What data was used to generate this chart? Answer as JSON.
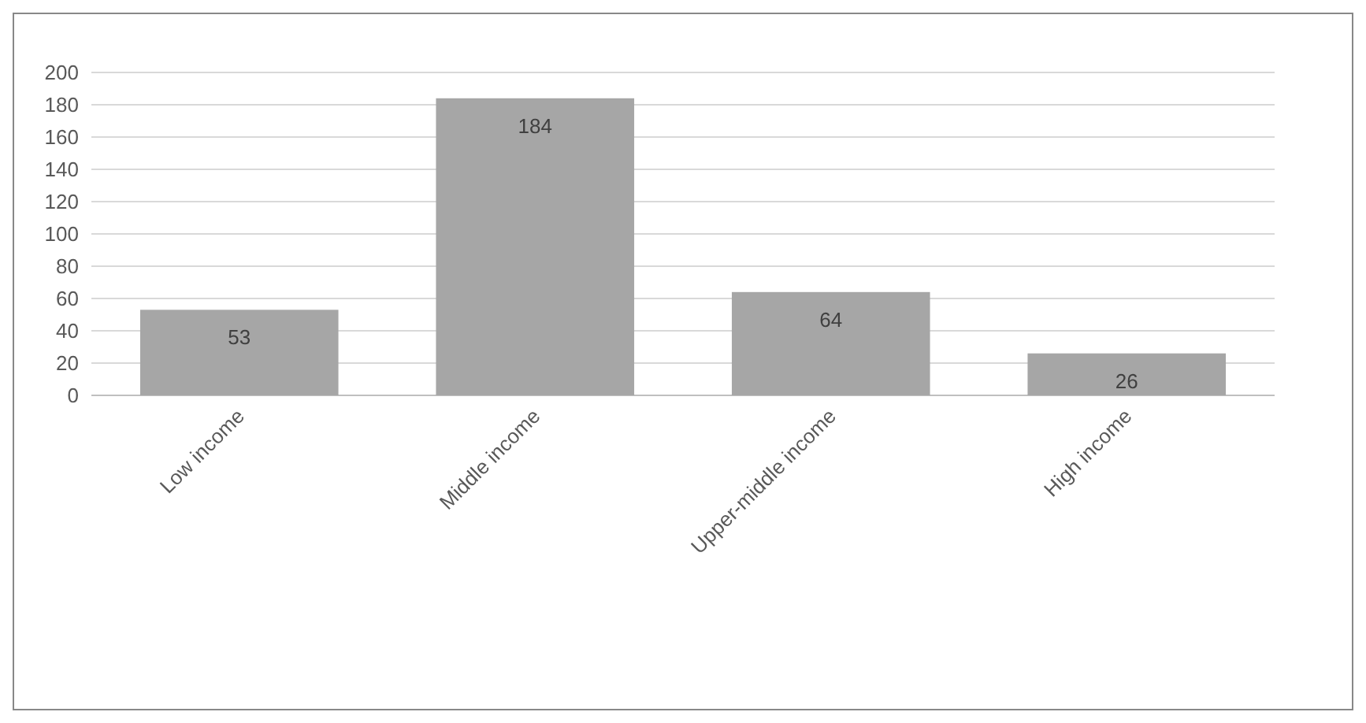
{
  "chart_data": {
    "type": "bar",
    "categories": [
      "Low income",
      "Middle income",
      "Upper-middle income",
      "High income"
    ],
    "values": [
      53,
      184,
      64,
      26
    ],
    "color": "#a6a6a6",
    "ylim": [
      0,
      200
    ],
    "yticks": [
      0,
      20,
      40,
      60,
      80,
      100,
      120,
      140,
      160,
      180,
      200
    ],
    "grid": "y",
    "data_labels": true
  }
}
